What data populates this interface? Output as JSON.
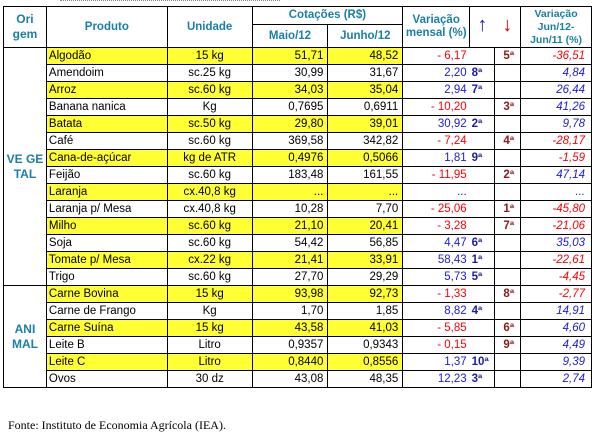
{
  "header": {
    "origem": "Ori gem",
    "produto": "Produto",
    "unidade": "Unidade",
    "cotacoes": "Cotações (R$)",
    "maio": "Maio/12",
    "junho": "Junho/12",
    "variacao_mensal": "Variação mensal (%)",
    "arrow_up": "↑",
    "arrow_down": "↓",
    "variacao_anual": "Variação Jun/12-Jun/11 (%)"
  },
  "groups": [
    {
      "origem": "VE GE TAL",
      "rows": [
        {
          "produto": "Algodão",
          "unidade": "15 kg",
          "maio": "51,71",
          "junho": "48,52",
          "var": "- 6,17",
          "rank_up": "",
          "rank_down": "5ª",
          "anual": "-36,51",
          "hl": true,
          "var_neg": true,
          "anual_neg": true
        },
        {
          "produto": "Amendoim",
          "unidade": "sc.25 kg",
          "maio": "30,99",
          "junho": "31,67",
          "var": "2,20",
          "rank_up": "8ª",
          "rank_down": "",
          "anual": "4,84",
          "hl": false,
          "var_neg": false,
          "anual_neg": false
        },
        {
          "produto": "Arroz",
          "unidade": "sc.60 kg",
          "maio": "34,03",
          "junho": "35,04",
          "var": "2,94",
          "rank_up": "7ª",
          "rank_down": "",
          "anual": "26,44",
          "hl": true,
          "var_neg": false,
          "anual_neg": false
        },
        {
          "produto": "Banana nanica",
          "unidade": "Kg",
          "maio": "0,7695",
          "junho": "0,6911",
          "var": "- 10,20",
          "rank_up": "",
          "rank_down": "3ª",
          "anual": "41,26",
          "hl": false,
          "var_neg": true,
          "anual_neg": false
        },
        {
          "produto": "Batata",
          "unidade": "sc.50 kg",
          "maio": "29,80",
          "junho": "39,01",
          "var": "30,92",
          "rank_up": "2ª",
          "rank_down": "",
          "anual": "9,78",
          "hl": true,
          "var_neg": false,
          "anual_neg": false
        },
        {
          "produto": "Café",
          "unidade": "sc.60 kg",
          "maio": "369,58",
          "junho": "342,82",
          "var": "- 7,24",
          "rank_up": "",
          "rank_down": "4ª",
          "anual": "-28,17",
          "hl": false,
          "var_neg": true,
          "anual_neg": true
        },
        {
          "produto": "Cana-de-açúcar",
          "unidade": "kg de ATR",
          "maio": "0,4976",
          "junho": "0,5066",
          "var": "1,81",
          "rank_up": "9ª",
          "rank_down": "",
          "anual": "-1,59",
          "hl": true,
          "var_neg": false,
          "anual_neg": true
        },
        {
          "produto": "Feijão",
          "unidade": "sc.60 kg",
          "maio": "183,48",
          "junho": "161,55",
          "var": "- 11,95",
          "rank_up": "",
          "rank_down": "2ª",
          "anual": "47,14",
          "hl": false,
          "var_neg": true,
          "anual_neg": false
        },
        {
          "produto": "Laranja",
          "unidade": "cx.40,8 kg",
          "maio": "...",
          "junho": "...",
          "var": "...",
          "rank_up": "",
          "rank_down": "",
          "anual": "...",
          "hl": true,
          "var_neg": false,
          "anual_neg": false
        },
        {
          "produto": "Laranja p/ Mesa",
          "unidade": "cx.40,8 kg",
          "maio": "10,28",
          "junho": "7,70",
          "var": "- 25,06",
          "rank_up": "",
          "rank_down": "1ª",
          "anual": "-45,80",
          "hl": false,
          "var_neg": true,
          "anual_neg": true
        },
        {
          "produto": "Milho",
          "unidade": "sc.60 kg",
          "maio": "21,10",
          "junho": "20,41",
          "var": "- 3,28",
          "rank_up": "",
          "rank_down": "7ª",
          "anual": "-21,06",
          "hl": true,
          "var_neg": true,
          "anual_neg": true
        },
        {
          "produto": "Soja",
          "unidade": "sc.60 kg",
          "maio": "54,42",
          "junho": "56,85",
          "var": "4,47",
          "rank_up": "6ª",
          "rank_down": "",
          "anual": "35,03",
          "hl": false,
          "var_neg": false,
          "anual_neg": false
        },
        {
          "produto": "Tomate p/ Mesa",
          "unidade": "cx.22 kg",
          "maio": "21,41",
          "junho": "33,91",
          "var": "58,43",
          "rank_up": "1ª",
          "rank_down": "",
          "anual": "-22,61",
          "hl": true,
          "var_neg": false,
          "anual_neg": true
        },
        {
          "produto": "Trigo",
          "unidade": "sc.60 kg",
          "maio": "27,70",
          "junho": "29,29",
          "var": "5,73",
          "rank_up": "5ª",
          "rank_down": "",
          "anual": "-4,45",
          "hl": false,
          "var_neg": false,
          "anual_neg": true
        }
      ]
    },
    {
      "origem": "ANI MAL",
      "rows": [
        {
          "produto": "Carne Bovina",
          "unidade": "15 kg",
          "maio": "93,98",
          "junho": "92,73",
          "var": "- 1,33",
          "rank_up": "",
          "rank_down": "8ª",
          "anual": "-2,77",
          "hl": true,
          "var_neg": true,
          "anual_neg": true
        },
        {
          "produto": "Carne de Frango",
          "unidade": "Kg",
          "maio": "1,70",
          "junho": "1,85",
          "var": "8,82",
          "rank_up": "4ª",
          "rank_down": "",
          "anual": "14,91",
          "hl": false,
          "var_neg": false,
          "anual_neg": false
        },
        {
          "produto": "Carne Suína",
          "unidade": "15 kg",
          "maio": "43,58",
          "junho": "41,03",
          "var": "- 5,85",
          "rank_up": "",
          "rank_down": "6ª",
          "anual": "4,60",
          "hl": true,
          "var_neg": true,
          "anual_neg": false
        },
        {
          "produto": "Leite B",
          "unidade": "Litro",
          "maio": "0,9357",
          "junho": "0,9343",
          "var": "- 0,15",
          "rank_up": "",
          "rank_down": "9ª",
          "anual": "4,49",
          "hl": false,
          "var_neg": true,
          "anual_neg": false
        },
        {
          "produto": "Leite C",
          "unidade": "Litro",
          "maio": "0,8440",
          "junho": "0,8556",
          "var": "1,37",
          "rank_up": "10ª",
          "rank_down": "",
          "anual": "9,39",
          "hl": true,
          "var_neg": false,
          "anual_neg": false
        },
        {
          "produto": "Ovos",
          "unidade": "30 dz",
          "maio": "43,08",
          "junho": "48,35",
          "var": "12,23",
          "rank_up": "3ª",
          "rank_down": "",
          "anual": "2,74",
          "hl": false,
          "var_neg": false,
          "anual_neg": false
        }
      ]
    }
  ],
  "fonte": "Fonte: Instituto de Economia Agrícola (IEA).",
  "colors": {
    "highlight": "#ffff33",
    "header_text": "#1a7fa8",
    "negative": "#ff0000",
    "positive": "#1c1cd0"
  }
}
